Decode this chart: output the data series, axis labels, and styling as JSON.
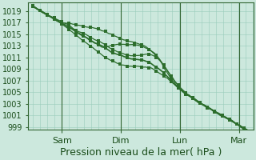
{
  "title": "",
  "xlabel": "Pression niveau de la mer( hPa )",
  "ylabel": "",
  "bg_color": "#cce8dd",
  "plot_bg_color": "#cce8dd",
  "grid_color": "#99ccbb",
  "line_color": "#2d6e2d",
  "dot_color": "#2d6e2d",
  "ylim": [
    998.5,
    1020.5
  ],
  "yticks": [
    999,
    1001,
    1003,
    1005,
    1007,
    1009,
    1011,
    1013,
    1015,
    1017,
    1019
  ],
  "day_positions": [
    0.333,
    1.0,
    1.667,
    2.333
  ],
  "day_labels": [
    "Sam",
    "Dim",
    "Lun",
    "Mar"
  ],
  "xlabel_fontsize": 9,
  "ytick_fontsize": 7,
  "xtick_fontsize": 8
}
